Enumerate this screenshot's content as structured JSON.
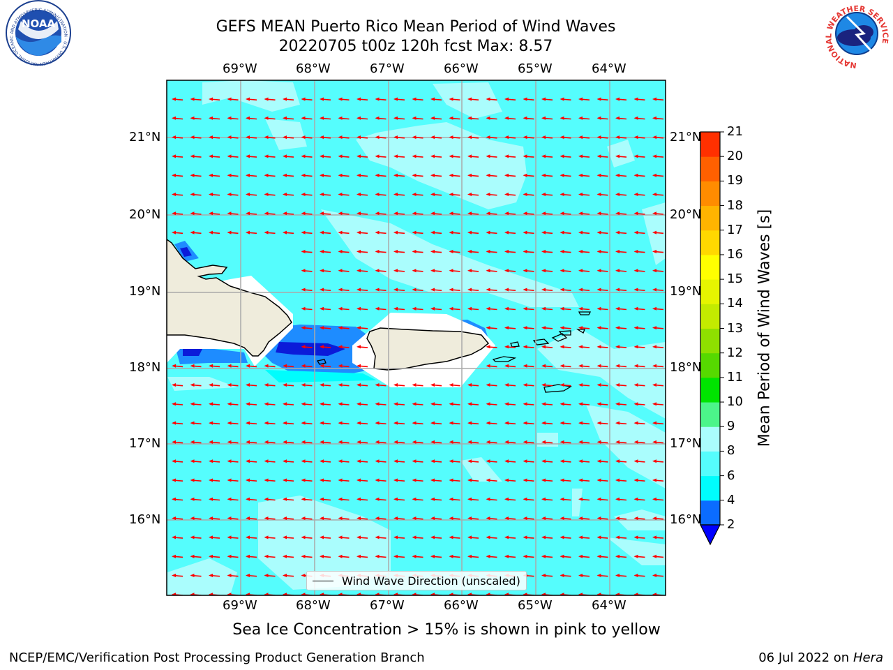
{
  "header": {
    "title_line1": "GEFS MEAN Puerto Rico Mean Period of Wind Waves",
    "title_line2": "20220705 t00z 120h fcst   Max: 8.57"
  },
  "logos": {
    "left": {
      "name": "noaa-logo",
      "text": "NOAA",
      "ring_text": "NATIONAL OCEANIC AND ATMOSPHERIC ADMINISTRATION · U.S. DEPARTMENT OF COMMERCE"
    },
    "right": {
      "name": "nws-logo",
      "ring_text": "NATIONAL WEATHER SERVICE"
    }
  },
  "map": {
    "lon_labels": [
      "69°W",
      "68°W",
      "67°W",
      "66°W",
      "65°W",
      "64°W"
    ],
    "lat_labels": [
      "21°N",
      "20°N",
      "19°N",
      "18°N",
      "17°N",
      "16°N"
    ],
    "legend_label": "Wind Wave Direction (unscaled)",
    "colors": {
      "ocean": "#55fdfd",
      "light": "#aafdfd",
      "mid": "#1e8cff",
      "dark": "#0b1bd9",
      "land": "#efecdc",
      "arrow": "#ff0000"
    }
  },
  "colorbar": {
    "title": "Mean Period of Wind Waves [s]",
    "ticks": [
      "2",
      "4",
      "6",
      "8",
      "9",
      "10",
      "11",
      "12",
      "13",
      "14",
      "15",
      "16",
      "17",
      "18",
      "19",
      "20",
      "21"
    ],
    "colors": [
      "#0b6cff",
      "#00fdfd",
      "#55fdfd",
      "#aafdfd",
      "#4cf58a",
      "#00e400",
      "#56d900",
      "#8fe000",
      "#c3eb00",
      "#e6f500",
      "#ffff00",
      "#ffd800",
      "#ffb400",
      "#ff8c00",
      "#ff6000",
      "#ff3000",
      "#ff0000"
    ],
    "under_color": "#0000ff"
  },
  "footer": {
    "caption": "Sea Ice Concentration > 15% is shown in pink to yellow",
    "left": "NCEP/EMC/Verification Post Processing Product Generation Branch",
    "right_date": "06 Jul 2022 on ",
    "right_machine": "Hera"
  }
}
